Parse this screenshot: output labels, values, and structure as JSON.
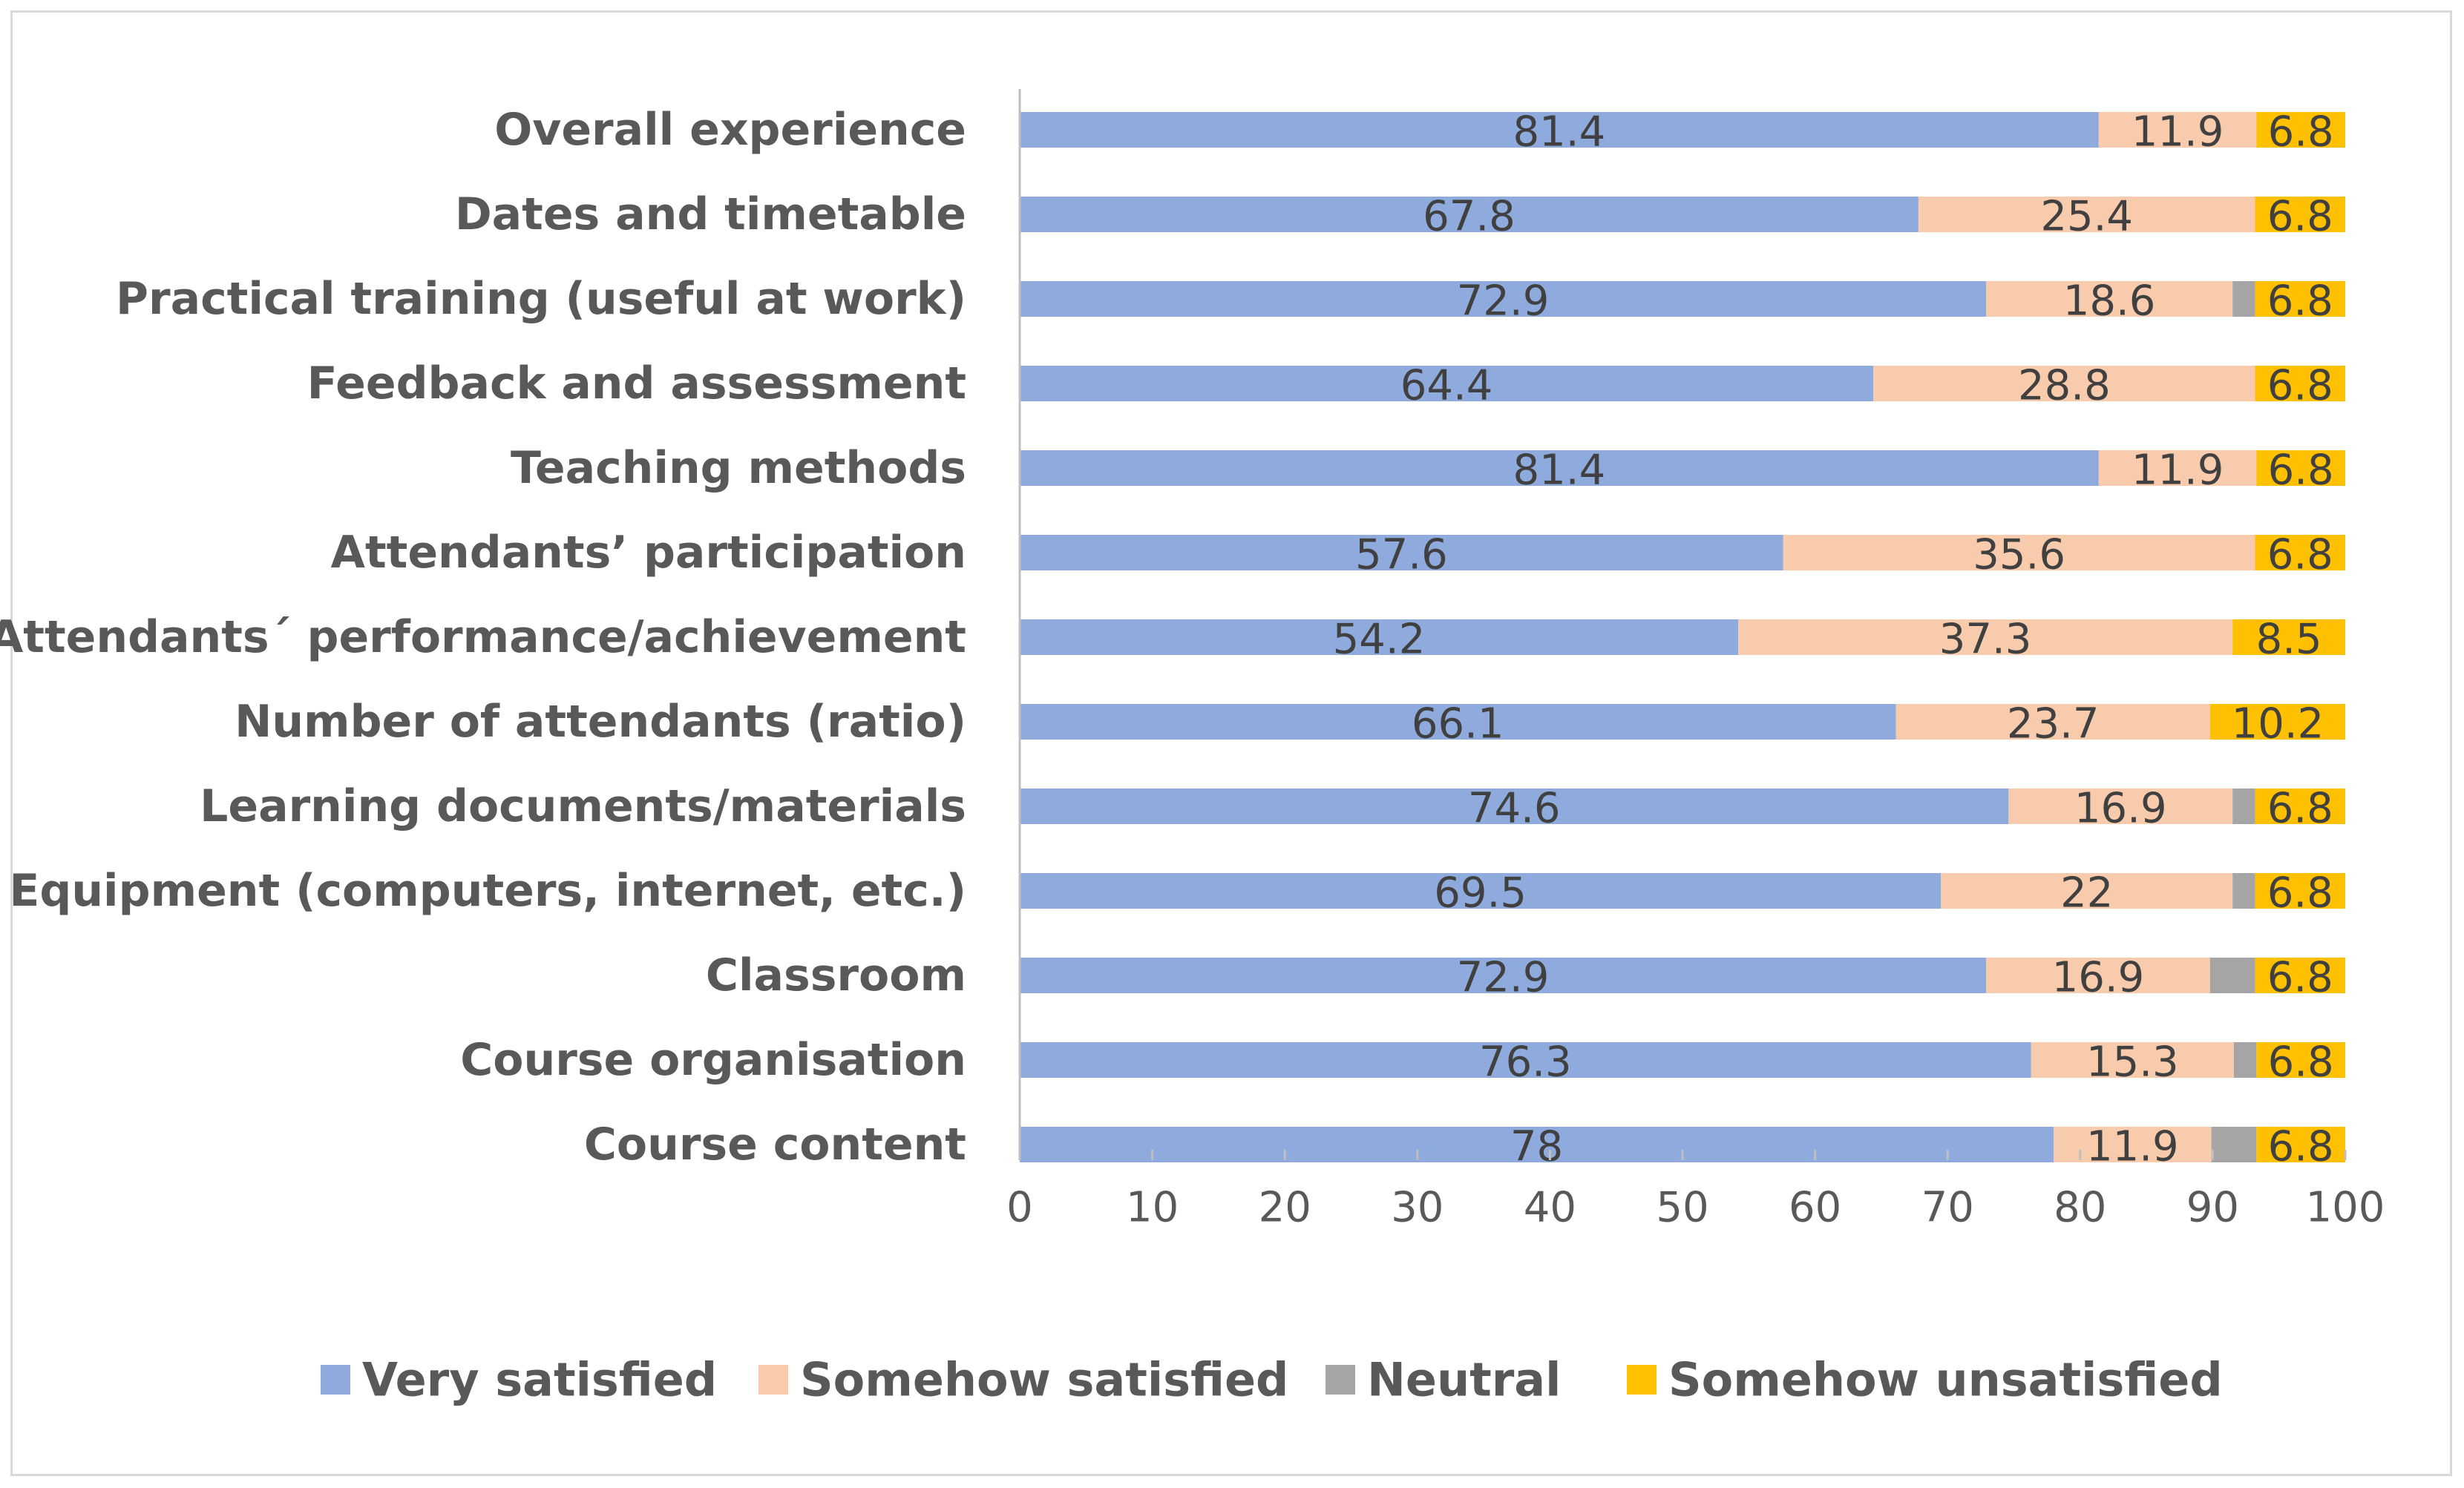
{
  "chart_data": {
    "type": "bar",
    "orientation": "horizontal",
    "stacked": true,
    "title": "",
    "xlabel": "",
    "ylabel": "",
    "xlim": [
      0,
      100
    ],
    "xticks": [
      0,
      10,
      20,
      30,
      40,
      50,
      60,
      70,
      80,
      90,
      100
    ],
    "grid": false,
    "legend_position": "bottom",
    "categories": [
      "Overall experience",
      "Dates and timetable",
      "Practical training (useful at work)",
      "Feedback and assessment",
      "Teaching methods",
      "Attendants’ participation",
      "Attendants´ performance/achievement",
      "Number of attendants (ratio)",
      "Learning documents/materials",
      "Equipment (computers, internet, etc.)",
      "Classroom",
      "Course organisation",
      "Course content"
    ],
    "series": [
      {
        "name": "Very satisfied",
        "color": "#8faadc",
        "values": [
          81.4,
          67.8,
          72.9,
          64.4,
          81.4,
          57.6,
          54.2,
          66.1,
          74.6,
          69.5,
          72.9,
          76.3,
          78
        ],
        "labels": [
          "81.4",
          "67.8",
          "72.9",
          "64.4",
          "81.4",
          "57.6",
          "54.2",
          "66.1",
          "74.6",
          "69.5",
          "72.9",
          "76.3",
          "78"
        ]
      },
      {
        "name": "Somehow satisfied",
        "color": "#f8cbad",
        "values": [
          11.9,
          25.4,
          18.6,
          28.8,
          11.9,
          35.6,
          37.3,
          23.7,
          16.9,
          22,
          16.9,
          15.3,
          11.9
        ],
        "labels": [
          "11.9",
          "25.4",
          "18.6",
          "28.8",
          "11.9",
          "35.6",
          "37.3",
          "23.7",
          "16.9",
          "22",
          "16.9",
          "15.3",
          "11.9"
        ]
      },
      {
        "name": "Neutral",
        "color": "#a5a5a5",
        "values": [
          0,
          0,
          1.7,
          0,
          0,
          0,
          0,
          0,
          1.7,
          1.7,
          3.4,
          1.7,
          3.4
        ],
        "labels": [
          "",
          "",
          "",
          "",
          "",
          "",
          "",
          "",
          "",
          "",
          "",
          "",
          ""
        ]
      },
      {
        "name": "Somehow unsatisfied",
        "color": "#ffc000",
        "values": [
          6.8,
          6.8,
          6.8,
          6.8,
          6.8,
          6.8,
          8.5,
          10.2,
          6.8,
          6.8,
          6.8,
          6.8,
          6.8
        ],
        "labels": [
          "6.8",
          "6.8",
          "6.8",
          "6.8",
          "6.8",
          "6.8",
          "8.5",
          "10.2",
          "6.8",
          "6.8",
          "6.8",
          "6.8",
          "6.8"
        ]
      }
    ]
  },
  "colors": {
    "axis": "#bfbfbf",
    "frame": "#d9d9d9",
    "category_text": "#595959",
    "data_label_text": "#404040"
  }
}
